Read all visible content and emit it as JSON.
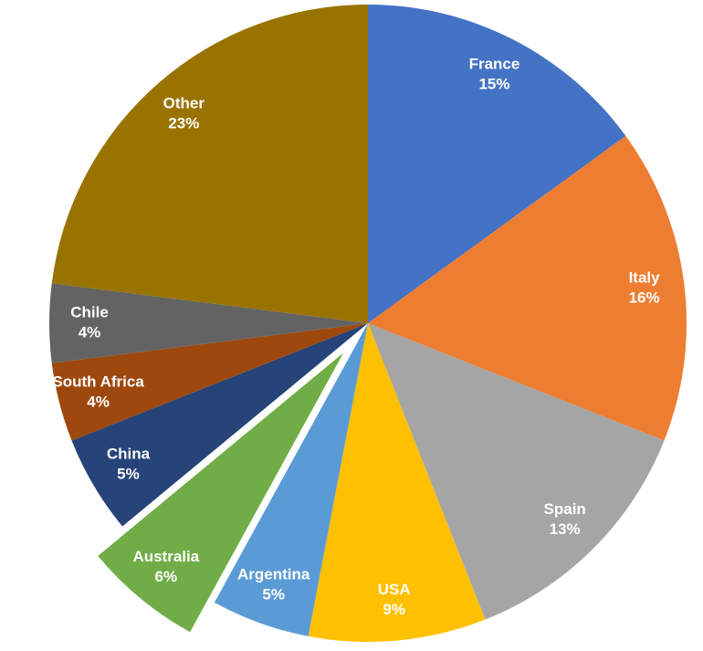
{
  "chart_data": {
    "type": "pie",
    "categories": [
      "France",
      "Italy",
      "Spain",
      "USA",
      "Argentina",
      "Australia",
      "China",
      "South Africa",
      "Chile",
      "Other"
    ],
    "values": [
      15,
      16,
      13,
      9,
      5,
      6,
      5,
      4,
      4,
      23
    ],
    "value_labels": [
      "15%",
      "16%",
      "13%",
      "9%",
      "5%",
      "6%",
      "5%",
      "4%",
      "4%",
      "23%"
    ],
    "colors": [
      "#4472c4",
      "#ed7d31",
      "#a5a5a5",
      "#ffc000",
      "#5b9bd5",
      "#70ad47",
      "#264478",
      "#9e480e",
      "#636363",
      "#997300"
    ],
    "exploded": "Australia"
  }
}
